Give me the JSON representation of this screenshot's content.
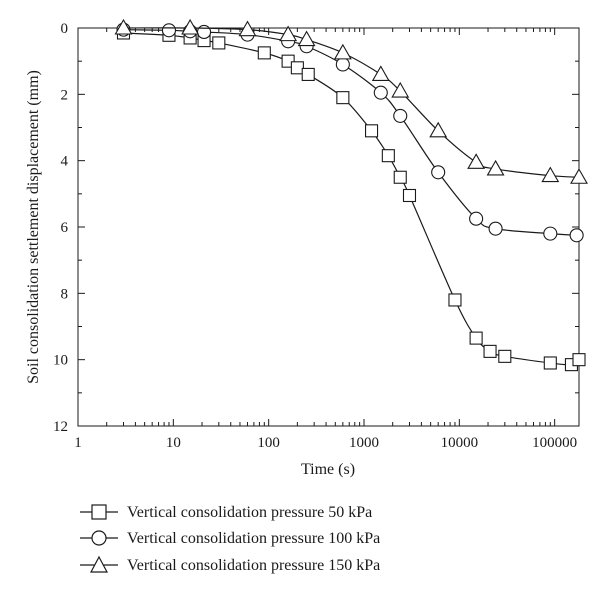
{
  "chart_data": {
    "type": "line",
    "title": "",
    "xlabel": "Time (s)",
    "ylabel": "Soil consolidation settlement displacement (mm)",
    "x_scale": "log",
    "xlim": [
      1,
      180000
    ],
    "ylim": [
      0,
      12
    ],
    "y_inverted": true,
    "grid": false,
    "legend_position": "bottom",
    "x_ticks": [
      1,
      10,
      100,
      1000,
      10000,
      100000
    ],
    "x_tick_labels": [
      "1",
      "10",
      "100",
      "1000",
      "10000",
      "100000"
    ],
    "y_ticks": [
      0,
      2,
      4,
      6,
      8,
      10,
      12
    ],
    "y_tick_labels": [
      "0",
      "2",
      "4",
      "6",
      "8",
      "10",
      "12"
    ],
    "series": [
      {
        "name": "Vertical consolidation pressure 50 kPa",
        "marker": "square",
        "points": [
          [
            3,
            0.15
          ],
          [
            9,
            0.22
          ],
          [
            15,
            0.3
          ],
          [
            21,
            0.38
          ],
          [
            30,
            0.45
          ],
          [
            90,
            0.75
          ],
          [
            160,
            1.0
          ],
          [
            200,
            1.2
          ],
          [
            260,
            1.4
          ],
          [
            600,
            2.1
          ],
          [
            1200,
            3.1
          ],
          [
            1800,
            3.85
          ],
          [
            2400,
            4.5
          ],
          [
            3000,
            5.05
          ],
          [
            9000,
            8.2
          ],
          [
            15000,
            9.35
          ],
          [
            21000,
            9.75
          ],
          [
            30000,
            9.9
          ],
          [
            90000,
            10.1
          ],
          [
            150000,
            10.15
          ],
          [
            180000,
            10.0
          ]
        ]
      },
      {
        "name": "Vertical consolidation pressure 100 kPa",
        "marker": "circle",
        "points": [
          [
            3,
            0.05
          ],
          [
            9,
            0.07
          ],
          [
            15,
            0.1
          ],
          [
            21,
            0.12
          ],
          [
            60,
            0.2
          ],
          [
            160,
            0.4
          ],
          [
            250,
            0.55
          ],
          [
            600,
            1.1
          ],
          [
            1500,
            1.95
          ],
          [
            2400,
            2.65
          ],
          [
            6000,
            4.35
          ],
          [
            15000,
            5.75
          ],
          [
            24000,
            6.05
          ],
          [
            90000,
            6.2
          ],
          [
            170000,
            6.25
          ]
        ]
      },
      {
        "name": "Vertical consolidation pressure 150 kPa",
        "marker": "triangle",
        "points": [
          [
            3,
            0.0
          ],
          [
            15,
            0.0
          ],
          [
            60,
            0.05
          ],
          [
            160,
            0.2
          ],
          [
            250,
            0.35
          ],
          [
            600,
            0.75
          ],
          [
            1500,
            1.4
          ],
          [
            2400,
            1.9
          ],
          [
            6000,
            3.1
          ],
          [
            15000,
            4.05
          ],
          [
            24000,
            4.25
          ],
          [
            90000,
            4.45
          ],
          [
            180000,
            4.5
          ]
        ]
      }
    ]
  }
}
